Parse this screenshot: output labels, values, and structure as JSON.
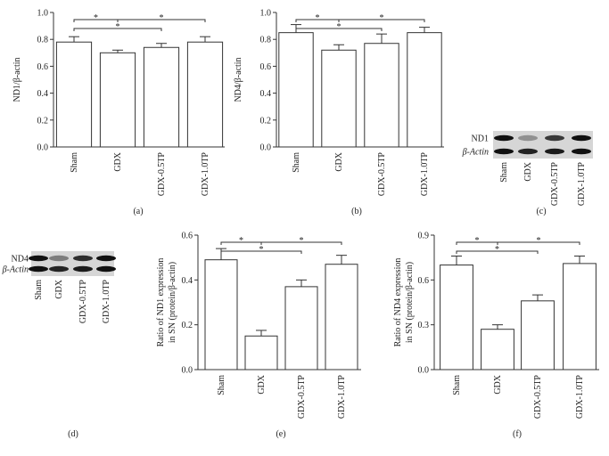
{
  "chart_data": [
    {
      "type": "bar",
      "panel_label": "(a)",
      "ylabel": [
        "ND1/β-actin"
      ],
      "categories": [
        "Sham",
        "GDX",
        "GDX-0.5TP",
        "GDX-1.0TP"
      ],
      "values": [
        0.78,
        0.7,
        0.74,
        0.78
      ],
      "errors": [
        0.04,
        0.02,
        0.03,
        0.04
      ],
      "color": "#ffffff",
      "ylim": [
        0,
        1.0
      ],
      "yticks": [
        {
          "value": 0,
          "label": "0.0"
        },
        0.2,
        0.4,
        0.6,
        0.8,
        {
          "value": 1.0,
          "label": "1.0"
        }
      ],
      "brackets": [
        {
          "categories": [
            0,
            2
          ],
          "label": "*"
        },
        {
          "categories": [
            0,
            1
          ],
          "label": "*"
        },
        {
          "categories": [
            1,
            3
          ],
          "label": "*"
        }
      ]
    },
    {
      "type": "bar",
      "panel_label": "(b)",
      "ylabel": [
        "ND4/β-actin"
      ],
      "categories": [
        "Sham",
        "GDX",
        "GDX-0.5TP",
        "GDX-1.0TP"
      ],
      "values": [
        0.85,
        0.72,
        0.77,
        0.85
      ],
      "errors": [
        0.06,
        0.04,
        0.07,
        0.04
      ],
      "color": "#ffffff",
      "ylim": [
        0,
        1.0
      ],
      "yticks": [
        {
          "value": 0,
          "label": "0.0"
        },
        0.2,
        0.4,
        0.6,
        0.8,
        {
          "value": 1.0,
          "label": "1.0"
        }
      ],
      "brackets": [
        {
          "categories": [
            0,
            2
          ],
          "label": "*"
        },
        {
          "categories": [
            0,
            1
          ],
          "label": "*"
        },
        {
          "categories": [
            1,
            3
          ],
          "label": "*"
        }
      ]
    },
    {
      "type": "bar",
      "panel_label": "(e)",
      "ylabel": [
        "Ratio of ND1 expression",
        "in SN (protein/β-actin)"
      ],
      "categories": [
        "Sham",
        "GDX",
        "GDX-0.5TP",
        "GDX-1.0TP"
      ],
      "values": [
        0.49,
        0.15,
        0.37,
        0.47
      ],
      "errors": [
        0.05,
        0.025,
        0.03,
        0.04
      ],
      "color": "#ffffff",
      "ylim": [
        0,
        0.6
      ],
      "yticks": [
        {
          "value": 0,
          "label": "0.0"
        },
        0.2,
        0.4,
        0.6
      ],
      "brackets": [
        {
          "categories": [
            0,
            2
          ],
          "label": "*"
        },
        {
          "categories": [
            0,
            1
          ],
          "label": "*"
        },
        {
          "categories": [
            1,
            3
          ],
          "label": "*"
        }
      ]
    },
    {
      "type": "bar",
      "panel_label": "(f)",
      "ylabel": [
        "Ratio of ND4 expression",
        "in SN (protein/β-actin)"
      ],
      "categories": [
        "Sham",
        "GDX",
        "GDX-0.5TP",
        "GDX-1.0TP"
      ],
      "values": [
        0.7,
        0.27,
        0.46,
        0.71
      ],
      "errors": [
        0.06,
        0.03,
        0.04,
        0.05
      ],
      "color": "#ffffff",
      "ylim": [
        0,
        0.9
      ],
      "yticks": [
        {
          "value": 0,
          "label": "0.0"
        },
        0.3,
        0.6,
        0.9
      ],
      "brackets": [
        {
          "categories": [
            0,
            2
          ],
          "label": "*"
        },
        {
          "categories": [
            0,
            1
          ],
          "label": "*"
        },
        {
          "categories": [
            1,
            3
          ],
          "label": "*"
        }
      ]
    }
  ],
  "blots": [
    {
      "panel_label": "(c)",
      "rows": [
        "ND1",
        "β-Actin"
      ],
      "lanes": [
        "Sham",
        "GDX",
        "GDX-0.5TP",
        "GDX-1.0TP"
      ]
    },
    {
      "panel_label": "(d)",
      "rows": [
        "ND4",
        "β-Actin"
      ],
      "lanes": [
        "Sham",
        "GDX",
        "GDX-0.5TP",
        "GDX-1.0TP"
      ]
    }
  ]
}
